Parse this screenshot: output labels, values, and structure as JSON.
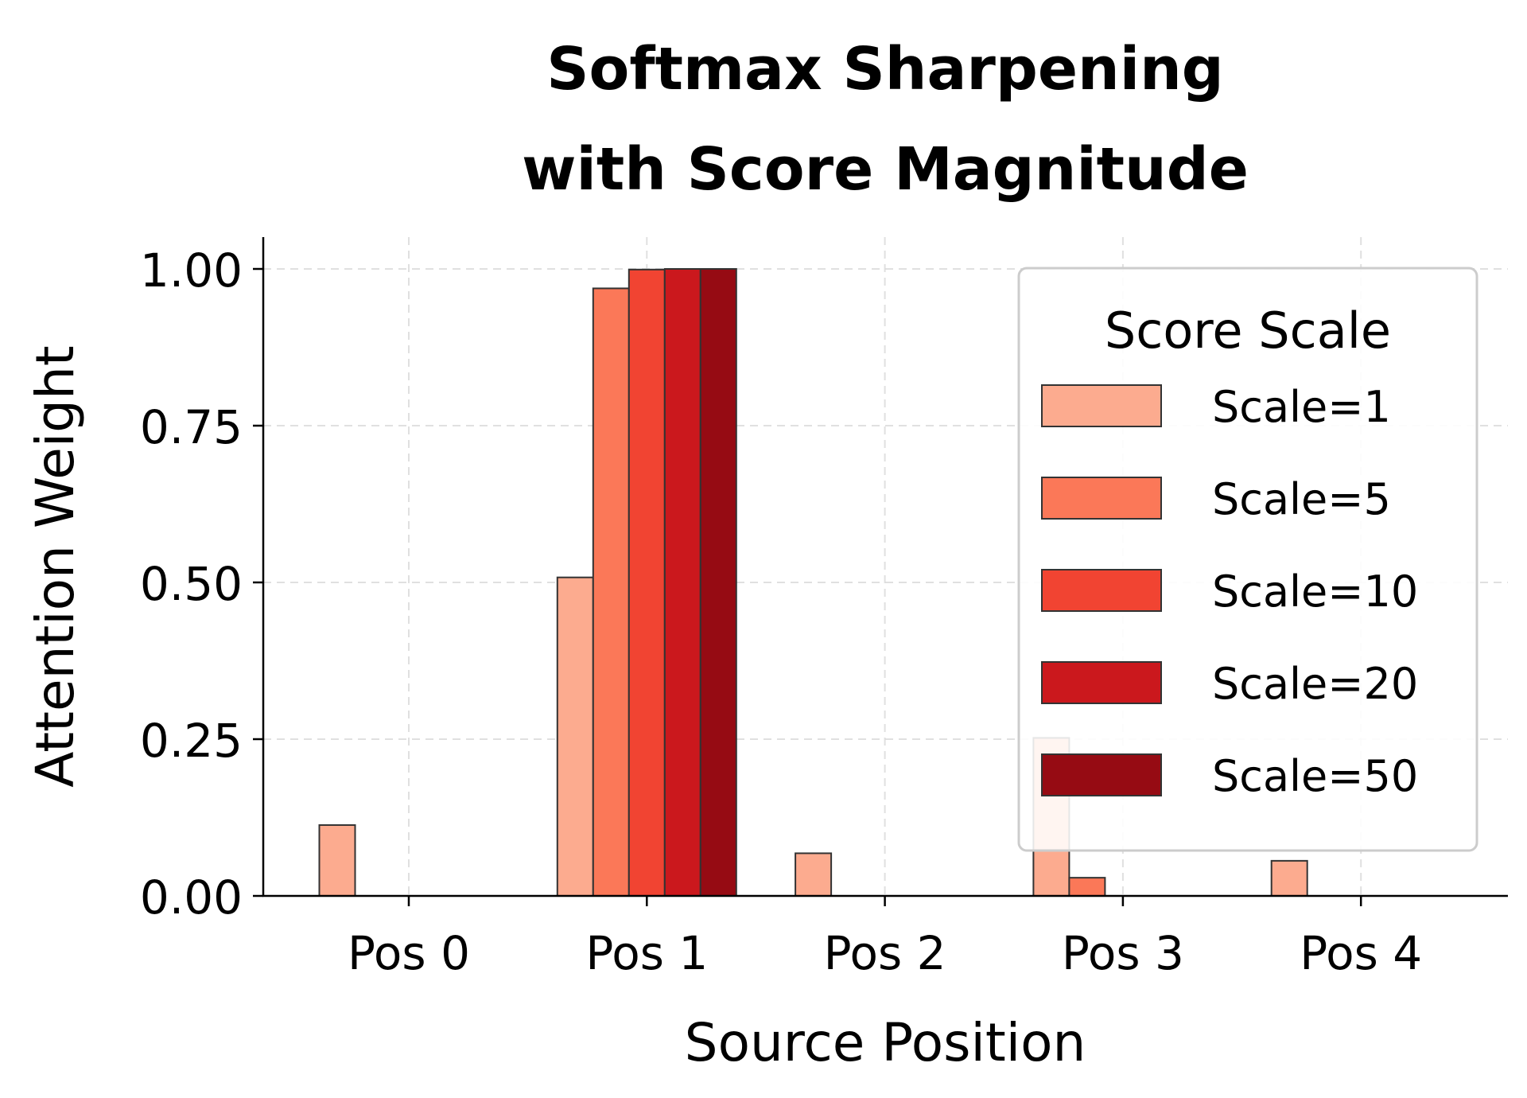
{
  "chart_data": {
    "type": "bar",
    "title": "Softmax Sharpening\nwith Score Magnitude",
    "title_lines": [
      "Softmax Sharpening",
      "with Score Magnitude"
    ],
    "xlabel": "Source Position",
    "ylabel": "Attention Weight",
    "categories": [
      "Pos 0",
      "Pos 1",
      "Pos 2",
      "Pos 3",
      "Pos 4"
    ],
    "ylim": [
      0,
      1.05
    ],
    "yticks": [
      0.0,
      0.25,
      0.5,
      0.75,
      1.0
    ],
    "ytick_labels": [
      "0.00",
      "0.25",
      "0.50",
      "0.75",
      "1.00"
    ],
    "grid": true,
    "legend": {
      "title": "Score Scale",
      "position": "upper right"
    },
    "series": [
      {
        "name": "Scale=1",
        "color": "#fcab8f",
        "values": [
          0.113,
          0.508,
          0.068,
          0.252,
          0.056
        ]
      },
      {
        "name": "Scale=5",
        "color": "#fb7858",
        "values": [
          0.0,
          0.969,
          0.0,
          0.029,
          0.0
        ]
      },
      {
        "name": "Scale=10",
        "color": "#f14432",
        "values": [
          0.0,
          0.999,
          0.0,
          0.0,
          0.0
        ]
      },
      {
        "name": "Scale=20",
        "color": "#cb181d",
        "values": [
          0.0,
          1.0,
          0.0,
          0.0,
          0.0
        ]
      },
      {
        "name": "Scale=50",
        "color": "#960b13",
        "values": [
          0.0,
          1.0,
          0.0,
          0.0,
          0.0
        ]
      }
    ]
  }
}
